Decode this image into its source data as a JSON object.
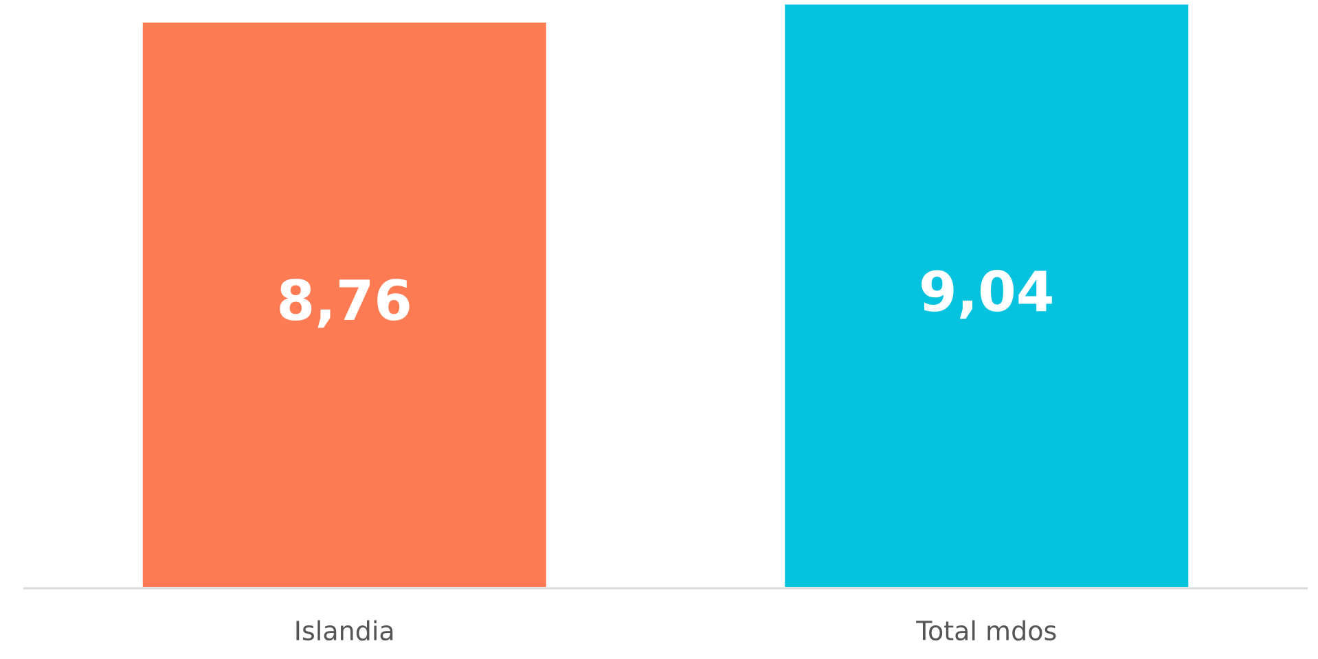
{
  "chart_data": {
    "type": "bar",
    "categories": [
      "Islandia",
      "Total mdos"
    ],
    "values": [
      8.76,
      9.04
    ],
    "value_labels": [
      "8,76",
      "9,04"
    ],
    "colors": [
      "#ff7b54",
      "#05c3de"
    ],
    "ylim": [
      0,
      9.11
    ]
  }
}
